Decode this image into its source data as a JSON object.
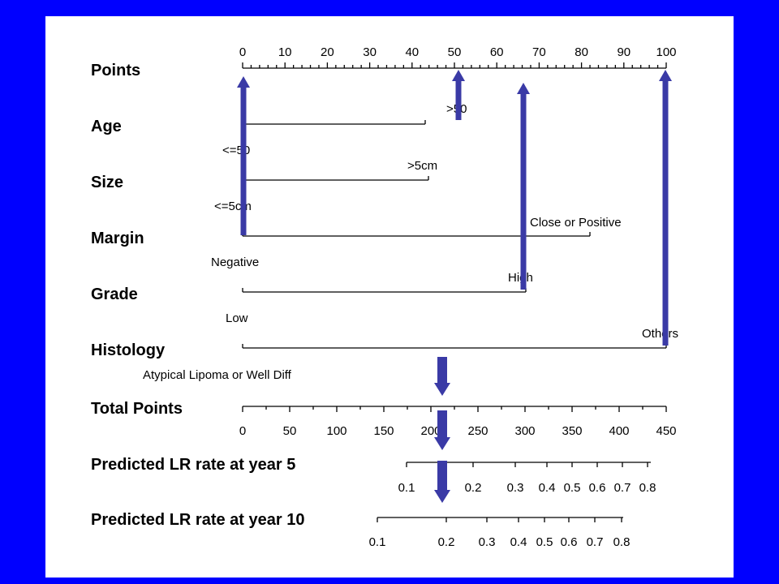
{
  "points_ticks": [
    0,
    10,
    20,
    30,
    40,
    50,
    60,
    70,
    80,
    90,
    100
  ],
  "rows": [
    {
      "key": "points",
      "label": "Points"
    },
    {
      "key": "age",
      "label": "Age",
      "low_label": "<=50",
      "high_label": ">50",
      "high_points": 43
    },
    {
      "key": "size",
      "label": "Size",
      "low_label": "<=5cm",
      "high_label": ">5cm",
      "high_points": 44
    },
    {
      "key": "margin",
      "label": "Margin",
      "low_label": "Negative",
      "high_label": "Close or Positive",
      "high_points": 82
    },
    {
      "key": "grade",
      "label": "Grade",
      "low_label": "Low",
      "high_label": "High",
      "high_points": 67
    },
    {
      "key": "histology",
      "label": "Histology",
      "low_label": "Atypical Lipoma or Well Diff",
      "high_label": "Others",
      "high_points": 100
    },
    {
      "key": "total",
      "label": "Total Points"
    },
    {
      "key": "lr5",
      "label": "Predicted LR rate at year 5"
    },
    {
      "key": "lr10",
      "label": "Predicted LR rate at year 10"
    }
  ],
  "total_ticks": [
    0,
    50,
    100,
    150,
    200,
    250,
    300,
    350,
    400,
    450
  ],
  "lr5_ticks": [
    "0.1",
    "0.2",
    "0.3",
    "0.4",
    "0.5",
    "0.6",
    "0.7",
    "0.8"
  ],
  "lr10_ticks": [
    "0.1",
    "0.2",
    "0.3",
    "0.4",
    "0.5",
    "0.6",
    "0.7",
    "0.8"
  ],
  "colors": {
    "background": "#0000ff",
    "panel": "#ffffff",
    "arrow": "#3a3aa6"
  }
}
